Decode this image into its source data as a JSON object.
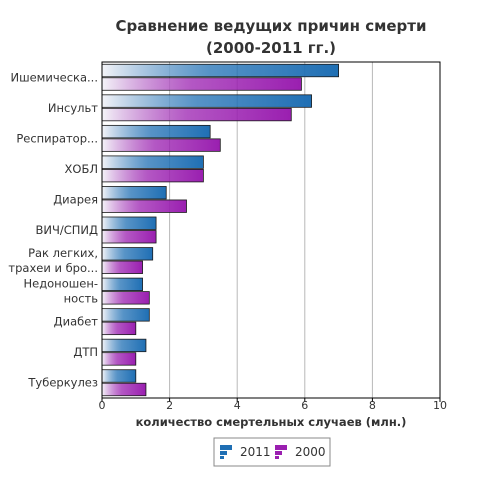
{
  "chart_data": {
    "type": "bar",
    "orientation": "horizontal",
    "title_lines": [
      "Сравнение ведущих причин смерти",
      "(2000-2011 гг.)"
    ],
    "xlabel": "количество смертельных случаев (млн.)",
    "ylabel": "",
    "xlim": [
      0,
      10
    ],
    "xticks": [
      "0",
      "2",
      "4",
      "6",
      "8",
      "10"
    ],
    "grid": true,
    "legend_position": "bottom",
    "categories": [
      [
        "Ишемическа..."
      ],
      [
        "Инсульт"
      ],
      [
        "Респиратор..."
      ],
      [
        "ХОБЛ"
      ],
      [
        "Диарея"
      ],
      [
        "ВИЧ/СПИД"
      ],
      [
        "Рак легких,",
        "трахеи и бро..."
      ],
      [
        "Недоношен-",
        "ность"
      ],
      [
        "Диабет"
      ],
      [
        "ДТП"
      ],
      [
        "Туберкулез"
      ]
    ],
    "series": [
      {
        "name": "2011",
        "color": "#1f6fb4",
        "values": [
          7.0,
          6.2,
          3.2,
          3.0,
          1.9,
          1.6,
          1.5,
          1.2,
          1.4,
          1.3,
          1.0
        ]
      },
      {
        "name": "2000",
        "color": "#9a1fb0",
        "values": [
          5.9,
          5.6,
          3.5,
          3.0,
          2.5,
          1.6,
          1.2,
          1.4,
          1.0,
          1.0,
          1.3
        ]
      }
    ]
  }
}
